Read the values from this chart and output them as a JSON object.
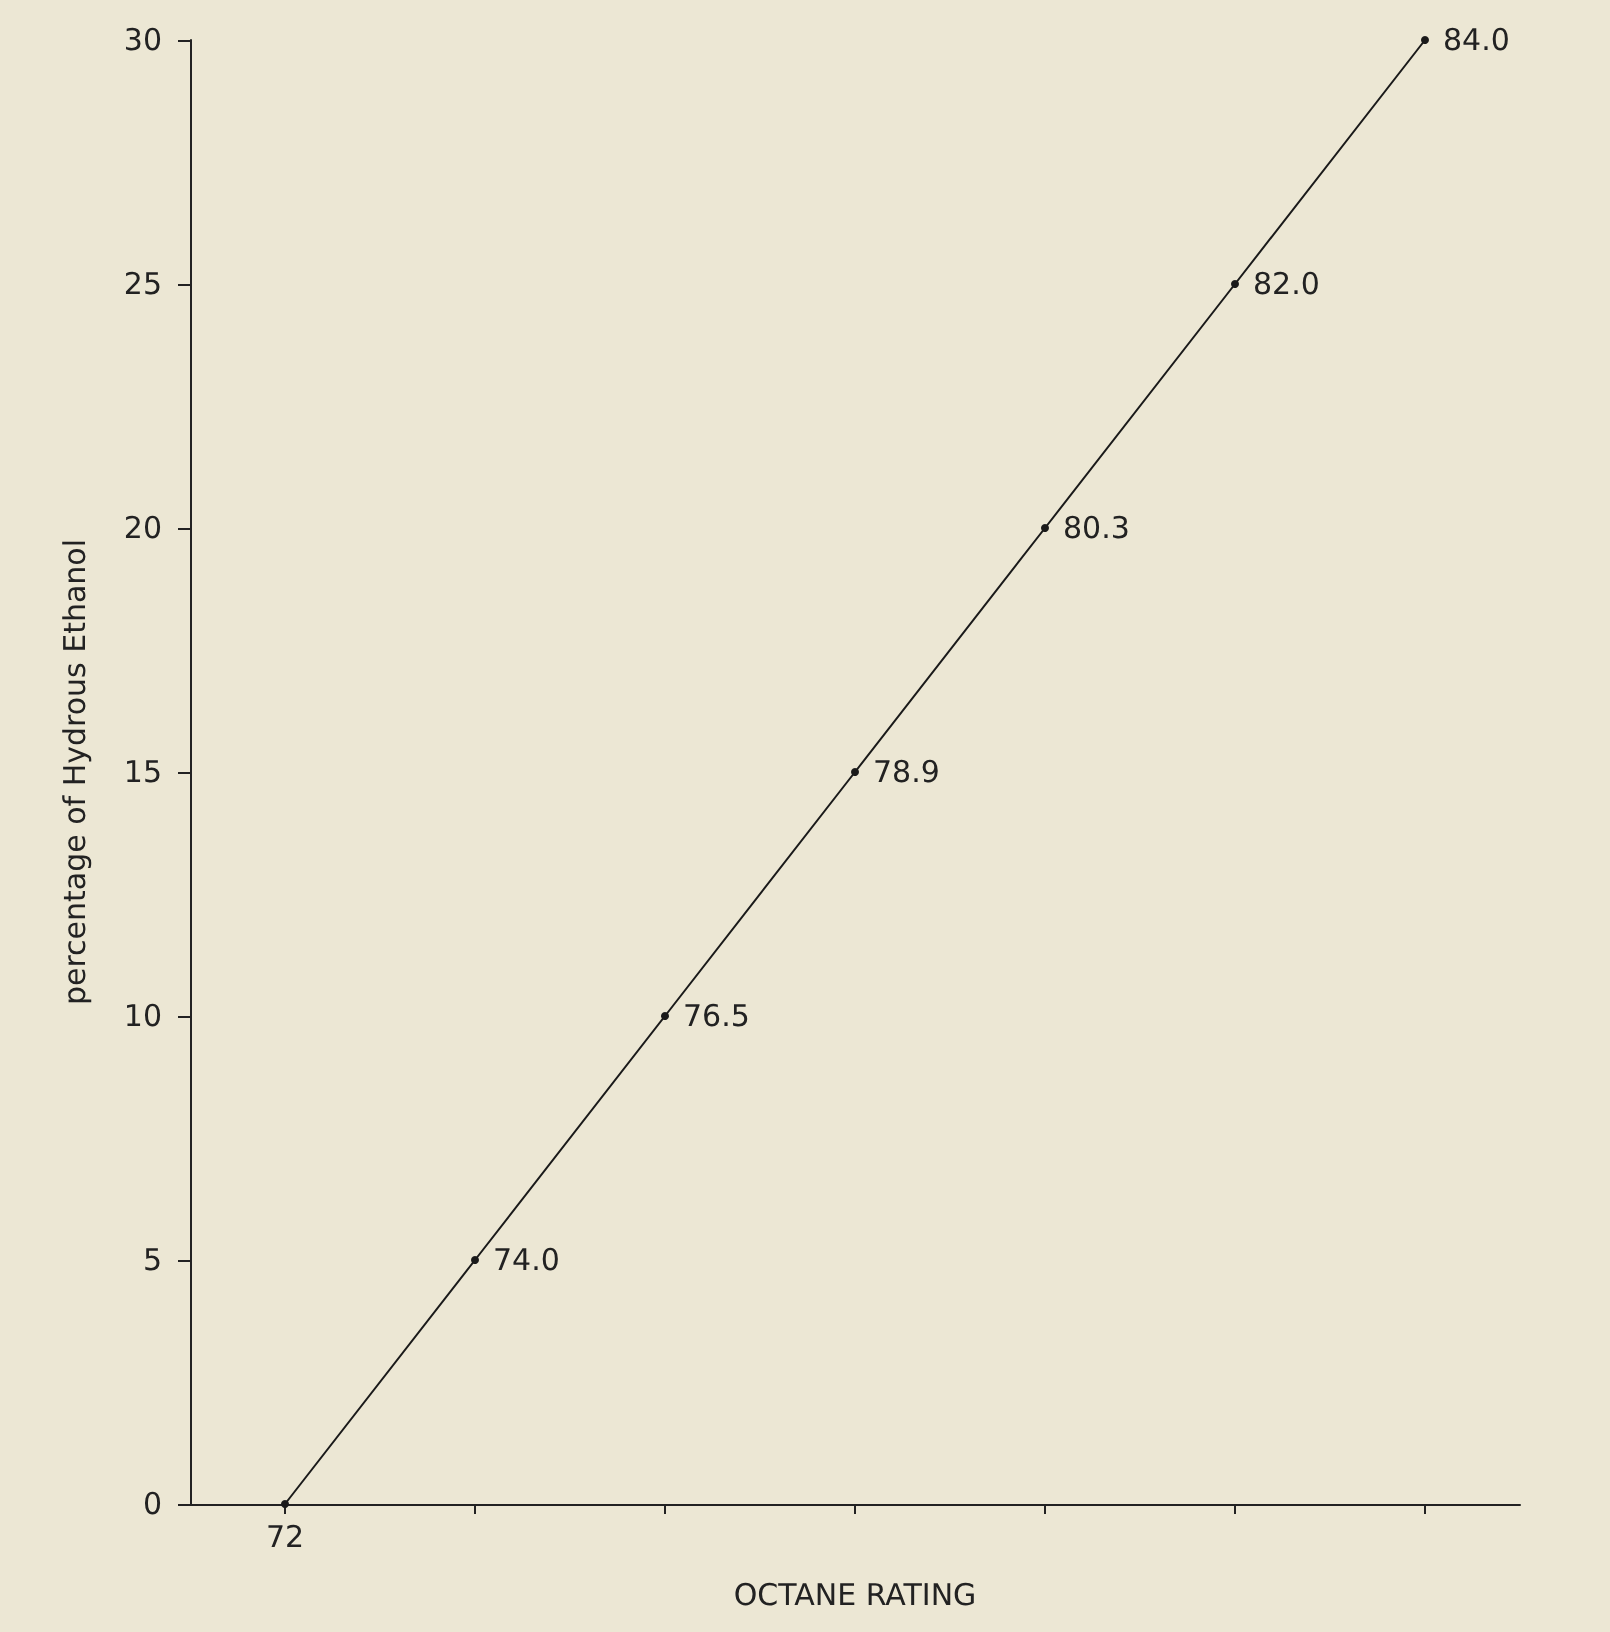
{
  "chart_data": {
    "type": "line",
    "xlabel": "OCTANE RATING",
    "ylabel": "percentage of Hydrous Ethanol",
    "categories": [
      "72",
      "74.0",
      "76.5",
      "78.9",
      "80.3",
      "82.0",
      "84.0"
    ],
    "series": [
      {
        "color": "#1a1a1a",
        "values": [
          0,
          5,
          10,
          15,
          20,
          25,
          30
        ]
      }
    ],
    "ylim": [
      0,
      30
    ],
    "yticks": [
      0,
      5,
      10,
      15,
      20,
      25,
      30
    ],
    "grid": false,
    "marker": "circle",
    "line_style": "solid"
  }
}
